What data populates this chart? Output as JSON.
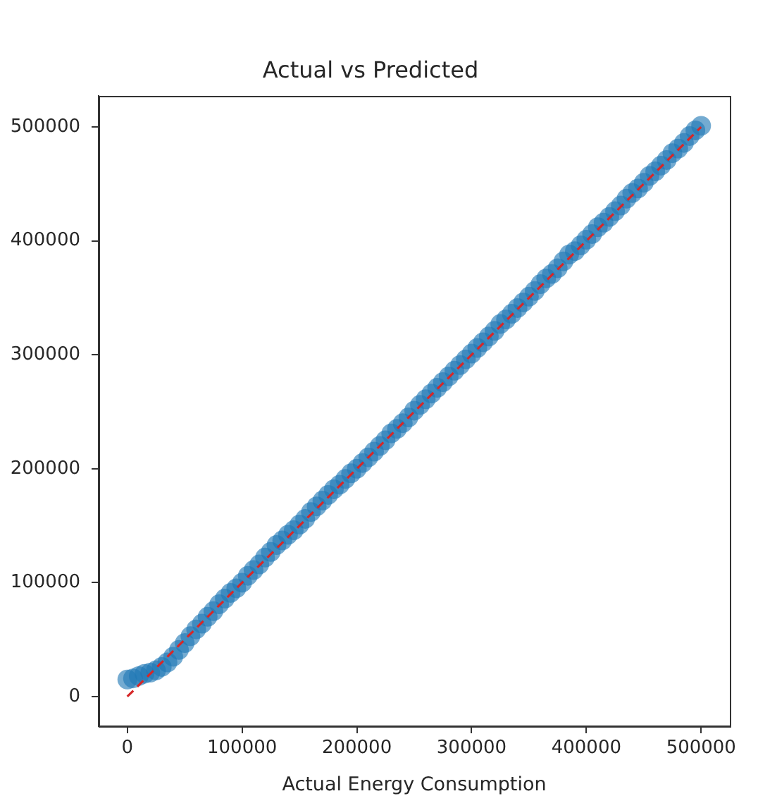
{
  "chart_data": {
    "type": "scatter",
    "title": "Actual vs Predicted",
    "xlabel": "Actual Energy Consumption",
    "xlim": [
      -25000,
      525000
    ],
    "xticks": [
      0,
      100000,
      200000,
      300000,
      400000,
      500000
    ],
    "ylim": [
      -26000,
      527000
    ],
    "yticks": [
      0,
      100000,
      200000,
      300000,
      400000,
      500000
    ],
    "series": [
      {
        "type": "scatter",
        "color": "#1f77b4",
        "marker": "circle",
        "x": [
          0,
          5000,
          10000,
          15000,
          20000,
          25000,
          30000,
          35000,
          40000,
          45000,
          50000,
          55000,
          60000,
          65000,
          70000,
          75000,
          80000,
          85000,
          90000,
          95000,
          100000,
          105000,
          110000,
          115000,
          120000,
          125000,
          130000,
          135000,
          140000,
          145000,
          150000,
          155000,
          160000,
          165000,
          170000,
          175000,
          180000,
          185000,
          190000,
          195000,
          200000,
          205000,
          210000,
          215000,
          220000,
          225000,
          230000,
          235000,
          240000,
          245000,
          250000,
          255000,
          260000,
          265000,
          270000,
          275000,
          280000,
          285000,
          290000,
          295000,
          300000,
          305000,
          310000,
          315000,
          320000,
          325000,
          330000,
          335000,
          340000,
          345000,
          350000,
          355000,
          360000,
          365000,
          370000,
          375000,
          380000,
          385000,
          390000,
          395000,
          400000,
          405000,
          410000,
          415000,
          420000,
          425000,
          430000,
          435000,
          440000,
          445000,
          450000,
          455000,
          460000,
          465000,
          470000,
          475000,
          480000,
          485000,
          490000,
          495000,
          500000
        ],
        "values": [
          15000,
          16000,
          18000,
          20000,
          21000,
          23000,
          26000,
          30000,
          35000,
          41000,
          47000,
          53000,
          59000,
          64000,
          70000,
          75000,
          81000,
          86000,
          91000,
          95000,
          100000,
          106000,
          111000,
          116000,
          122000,
          127000,
          133000,
          137000,
          142000,
          146000,
          151000,
          156000,
          162000,
          167000,
          172000,
          177000,
          182000,
          186000,
          191000,
          196000,
          200000,
          205000,
          210000,
          215000,
          220000,
          225000,
          231000,
          235000,
          240000,
          245000,
          251000,
          256000,
          261000,
          266000,
          271000,
          276000,
          281000,
          286000,
          291000,
          296000,
          301000,
          306000,
          311000,
          316000,
          321000,
          327000,
          331000,
          336000,
          341000,
          346000,
          351000,
          356000,
          362000,
          367000,
          371000,
          376000,
          382000,
          388000,
          391000,
          396000,
          401000,
          406000,
          412000,
          416000,
          421000,
          426000,
          431000,
          437000,
          442000,
          446000,
          451000,
          457000,
          461000,
          466000,
          471000,
          477000,
          481000,
          486000,
          492000,
          497000,
          501000
        ]
      },
      {
        "type": "line",
        "color": "#d62728",
        "marker": "none",
        "line_style": "dashed",
        "x": [
          0,
          500000
        ],
        "values": [
          0,
          500000
        ]
      }
    ]
  }
}
